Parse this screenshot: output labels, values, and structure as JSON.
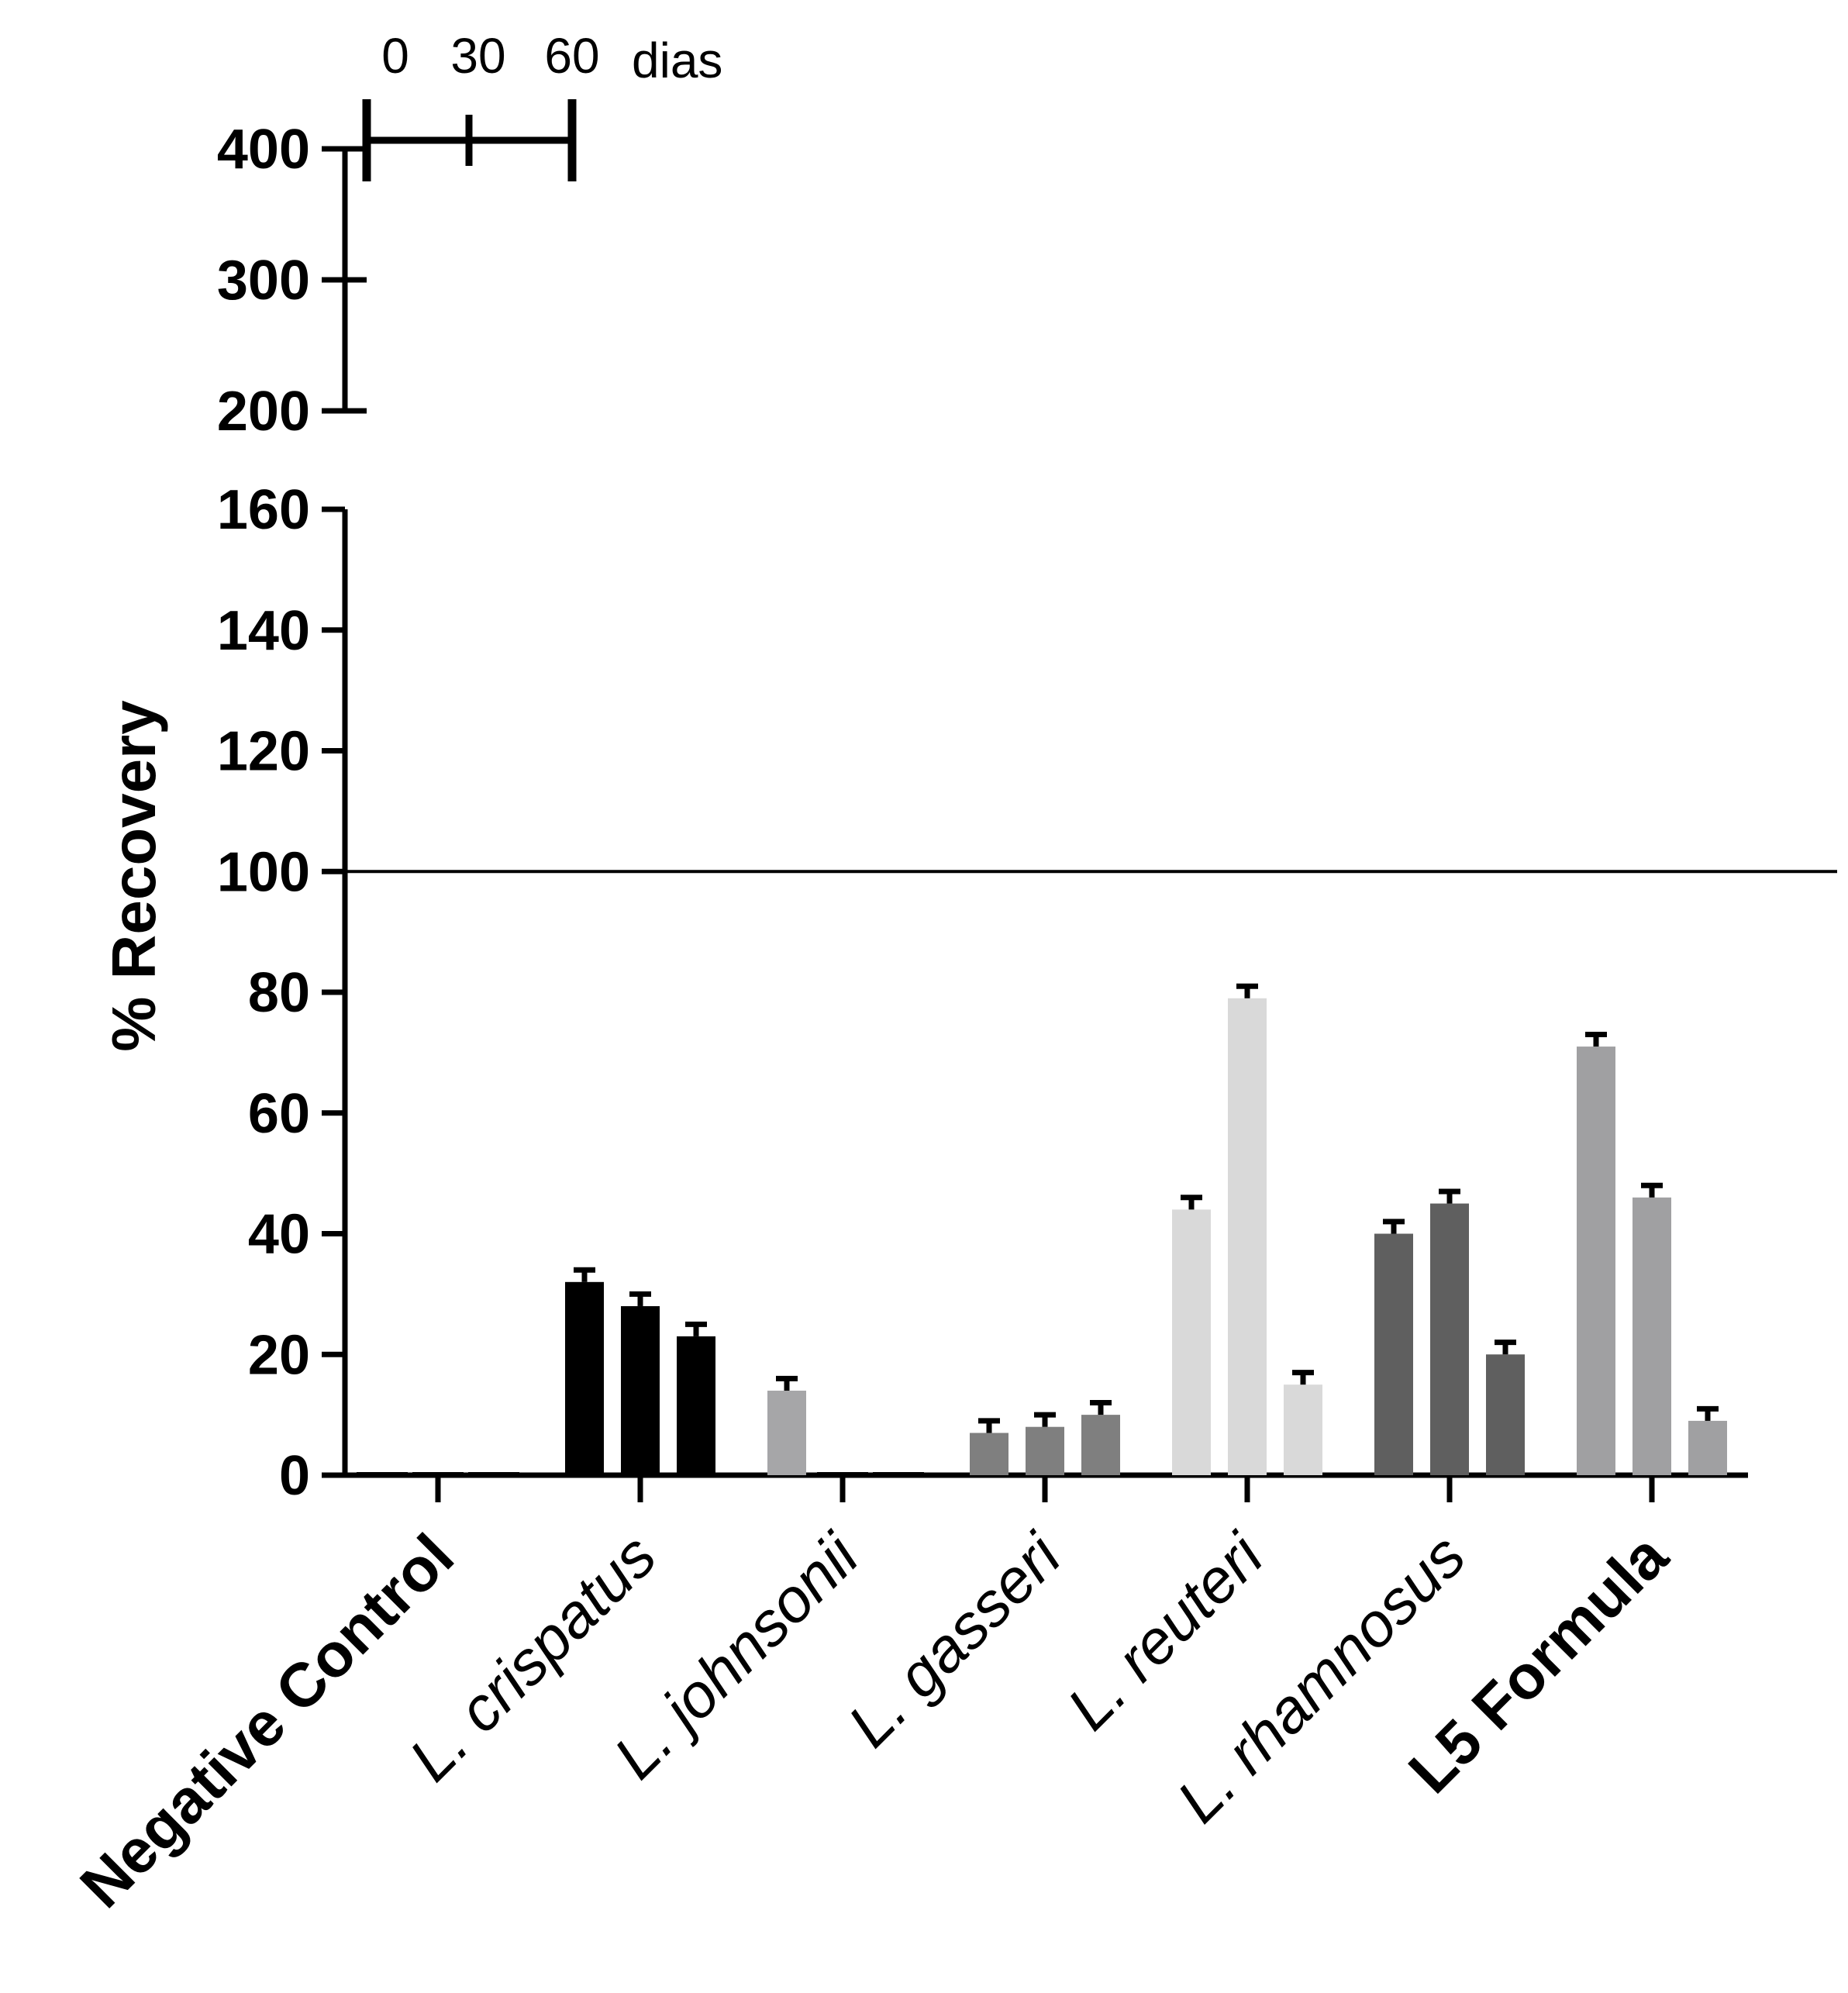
{
  "chart_data": {
    "type": "bar",
    "ylabel": "% Recovery",
    "xlabel": "",
    "y_axis_break": {
      "lower_range": [
        0,
        160
      ],
      "upper_range": [
        200,
        400
      ]
    },
    "y_ticks_lower": [
      "0",
      "20",
      "40",
      "60",
      "80",
      "100",
      "120",
      "140",
      "160"
    ],
    "y_ticks_upper": [
      "200",
      "300",
      "400"
    ],
    "reference_line_y": 100,
    "groups_legend": {
      "ticks": [
        "0",
        "30",
        "60"
      ],
      "unit": "dias"
    },
    "categories": [
      {
        "label": "Negative Control",
        "style": "bold",
        "color": "#000000"
      },
      {
        "label": "L. crispatus",
        "style": "italic",
        "color": "#000000"
      },
      {
        "label": "L. johnsonii",
        "style": "italic",
        "color": "#a6a6a8"
      },
      {
        "label": "L. gasseri",
        "style": "italic",
        "color": "#7f7f7f"
      },
      {
        "label": "L. reuteri",
        "style": "italic",
        "color": "#d9d9d9"
      },
      {
        "label": "L. rhamnosus",
        "style": "italic",
        "color": "#5f5f5f"
      },
      {
        "label": "L5 Formula",
        "style": "bold",
        "color": "#a0a0a2"
      }
    ],
    "series": [
      {
        "name": "0",
        "values": [
          0,
          32,
          14,
          7,
          44,
          40,
          71
        ],
        "errors": [
          0,
          2,
          2,
          2,
          2,
          2,
          2
        ]
      },
      {
        "name": "30",
        "values": [
          0,
          28,
          0,
          8,
          79,
          45,
          46
        ],
        "errors": [
          0,
          2,
          0,
          2,
          2,
          2,
          2
        ]
      },
      {
        "name": "60",
        "values": [
          0,
          23,
          0,
          10,
          15,
          20,
          9
        ],
        "errors": [
          0,
          2,
          0,
          2,
          2,
          2,
          2
        ]
      }
    ]
  }
}
